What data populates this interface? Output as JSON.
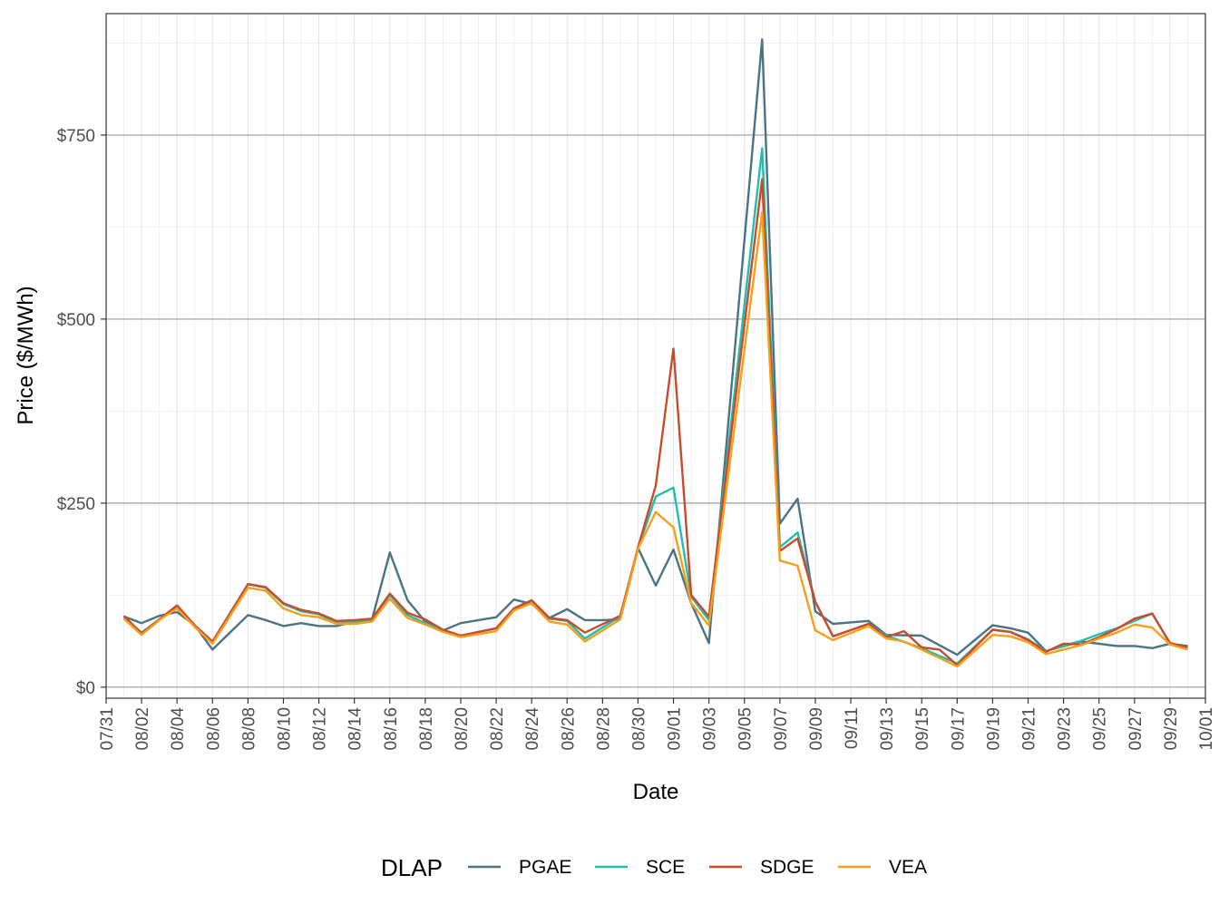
{
  "chart_data": {
    "type": "line",
    "xlabel": "Date",
    "ylabel": "Price ($/MWh)",
    "ylim": [
      -15,
      915
    ],
    "xlim": [
      "07/31",
      "10/01"
    ],
    "grid": true,
    "legend_position": "bottom",
    "legend_title": "DLAP",
    "y_ticks": [
      {
        "value": 0,
        "label": "$0"
      },
      {
        "value": 250,
        "label": "$250"
      },
      {
        "value": 500,
        "label": "$500"
      },
      {
        "value": 750,
        "label": "$750"
      }
    ],
    "x_ticks": [
      "07/31",
      "08/02",
      "08/04",
      "08/06",
      "08/08",
      "08/10",
      "08/12",
      "08/14",
      "08/16",
      "08/18",
      "08/20",
      "08/22",
      "08/24",
      "08/26",
      "08/28",
      "08/30",
      "09/01",
      "09/03",
      "09/05",
      "09/07",
      "09/09",
      "09/11",
      "09/13",
      "09/15",
      "09/17",
      "09/19",
      "09/21",
      "09/23",
      "09/25",
      "09/27",
      "09/29",
      "10/01"
    ],
    "x": [
      "08/01",
      "08/02",
      "08/03",
      "08/04",
      "08/05",
      "08/06",
      "08/07",
      "08/08",
      "08/09",
      "08/10",
      "08/11",
      "08/12",
      "08/13",
      "08/14",
      "08/15",
      "08/16",
      "08/17",
      "08/18",
      "08/19",
      "08/20",
      "08/21",
      "08/22",
      "08/23",
      "08/24",
      "08/25",
      "08/26",
      "08/27",
      "08/28",
      "08/29",
      "08/30",
      "08/31",
      "09/01",
      "09/02",
      "09/03",
      "09/04",
      "09/05",
      "09/06",
      "09/07",
      "09/08",
      "09/09",
      "09/10",
      "09/11",
      "09/12",
      "09/13",
      "09/14",
      "09/15",
      "09/16",
      "09/17",
      "09/18",
      "09/19",
      "09/20",
      "09/21",
      "09/22",
      "09/23",
      "09/24",
      "09/25",
      "09/26",
      "09/27",
      "09/28",
      "09/29",
      "09/30"
    ],
    "series": [
      {
        "name": "PGAE",
        "color": "#4a7384",
        "values": [
          96,
          87,
          97,
          102,
          84,
          51,
          null,
          98,
          91,
          83,
          87,
          83,
          83,
          89,
          92,
          183,
          118,
          89,
          77,
          87,
          91,
          95,
          119,
          113,
          94,
          106,
          91,
          91,
          92,
          189,
          138,
          187,
          114,
          60,
          null,
          null,
          880,
          222,
          256,
          103,
          86,
          null,
          90,
          71,
          null,
          70,
          null,
          44,
          null,
          84,
          80,
          74,
          49,
          null,
          62,
          59,
          56,
          56,
          53,
          59,
          56
        ]
      },
      {
        "name": "SCE",
        "color": "#1fbfb0",
        "values": [
          95,
          74,
          92,
          108,
          82,
          60,
          null,
          140,
          135,
          113,
          103,
          99,
          88,
          88,
          91,
          125,
          98,
          87,
          76,
          70,
          75,
          80,
          107,
          117,
          93,
          90,
          66,
          null,
          96,
          189,
          259,
          271,
          123,
          91,
          null,
          null,
          732,
          190,
          210,
          116,
          69,
          null,
          86,
          70,
          null,
          53,
          null,
          32,
          null,
          78,
          75,
          65,
          49,
          null,
          63,
          72,
          80,
          90,
          100,
          59,
          54
        ]
      },
      {
        "name": "SDGE",
        "color": "#cc4a2c",
        "values": [
          97,
          73,
          92,
          111,
          84,
          62,
          null,
          140,
          136,
          114,
          105,
          100,
          90,
          91,
          93,
          127,
          101,
          92,
          78,
          70,
          75,
          80,
          107,
          118,
          94,
          91,
          74,
          null,
          97,
          190,
          274,
          460,
          125,
          96,
          null,
          null,
          690,
          185,
          202,
          116,
          69,
          null,
          86,
          68,
          76,
          54,
          51,
          30,
          null,
          78,
          75,
          64,
          48,
          59,
          58,
          68,
          79,
          93,
          100,
          60,
          54
        ]
      },
      {
        "name": "VEA",
        "color": "#f5a018",
        "values": [
          93,
          71,
          91,
          107,
          82,
          59,
          null,
          135,
          131,
          107,
          98,
          95,
          86,
          86,
          89,
          120,
          94,
          85,
          75,
          68,
          72,
          76,
          104,
          114,
          89,
          85,
          62,
          null,
          92,
          188,
          238,
          217,
          114,
          84,
          null,
          null,
          645,
          172,
          165,
          77,
          64,
          null,
          83,
          66,
          62,
          51,
          null,
          28,
          null,
          71,
          69,
          61,
          45,
          null,
          57,
          66,
          74,
          85,
          81,
          58,
          51
        ]
      }
    ]
  }
}
